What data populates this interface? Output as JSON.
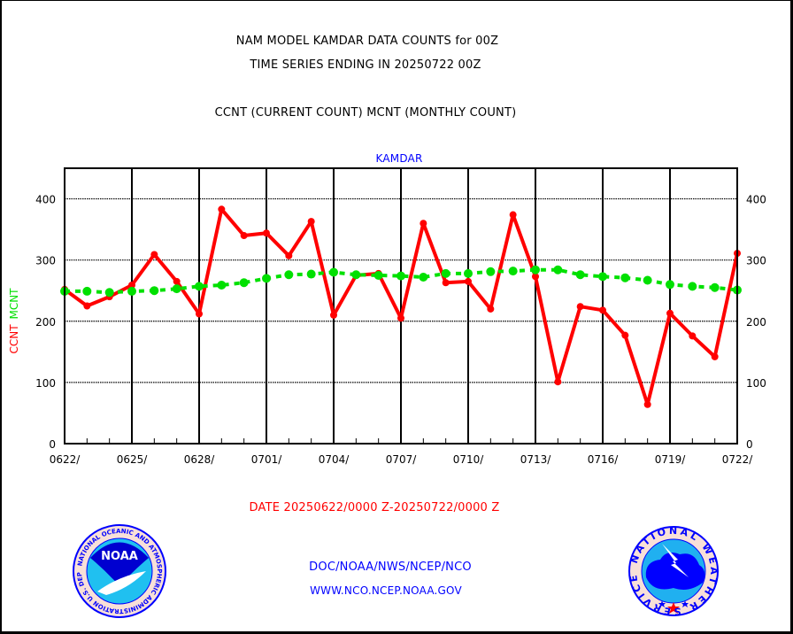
{
  "titles": {
    "line1": "NAM MODEL KAMDAR DATA COUNTS for 00Z",
    "line2": "TIME SERIES ENDING IN 20250722 00Z",
    "line3": "CCNT (CURRENT COUNT) MCNT (MONTHLY COUNT)",
    "station": "KAMDAR"
  },
  "date_range": "DATE 20250622/0000 Z-20250722/0000 Z",
  "footer": {
    "org": "DOC/NOAA/NWS/NCEP/NCO",
    "url": "WWW.NCO.NCEP.NOAA.GOV"
  },
  "logos": {
    "noaa": {
      "label": "NOAA",
      "ring_text": "NATIONAL OCEANIC AND ATMOSPHERIC ADMINISTRATION U.S. DEPARTMENT OF COMMERCE"
    },
    "nws": {
      "ring_text": "NATIONAL WEATHER SERVICE"
    }
  },
  "colors": {
    "ccnt": "#ff0000",
    "mcnt": "#00e000",
    "station": "#0000ff",
    "date": "#ff0000",
    "footer": "#0000ff"
  },
  "chart_data": {
    "type": "line",
    "title": "NAM MODEL KAMDAR DATA COUNTS for 00Z",
    "subtitle": "TIME SERIES ENDING IN 20250722 00Z",
    "xlabel": "DATE 20250622/0000 Z-20250722/0000 Z",
    "ylabel": "CCNT  MCNT",
    "ylabel_parts": [
      "CCNT",
      "MCNT"
    ],
    "ylim": [
      0,
      450
    ],
    "yticks": [
      0,
      100,
      200,
      300,
      400
    ],
    "xtick_labels": [
      "0622/",
      "0625/",
      "0628/",
      "0701/",
      "0704/",
      "0707/",
      "0710/",
      "0713/",
      "0716/",
      "0719/",
      "0722/"
    ],
    "grid": true,
    "x": [
      "0622",
      "0623",
      "0624",
      "0625",
      "0626",
      "0627",
      "0628",
      "0629",
      "0630",
      "0701",
      "0702",
      "0703",
      "0704",
      "0705",
      "0706",
      "0707",
      "0708",
      "0709",
      "0710",
      "0711",
      "0712",
      "0713",
      "0714",
      "0715",
      "0716",
      "0717",
      "0718",
      "0719",
      "0720",
      "0721",
      "0722"
    ],
    "series": [
      {
        "name": "CCNT",
        "style": "solid",
        "values": [
          252,
          225,
          240,
          259,
          309,
          265,
          212,
          383,
          340,
          344,
          307,
          363,
          210,
          275,
          278,
          205,
          360,
          263,
          265,
          220,
          374,
          273,
          101,
          224,
          218,
          177,
          64,
          213,
          176,
          142,
          311
        ]
      },
      {
        "name": "MCNT",
        "style": "dotted",
        "values": [
          249,
          249,
          247,
          249,
          250,
          253,
          257,
          259,
          263,
          270,
          276,
          277,
          280,
          276,
          275,
          274,
          272,
          278,
          278,
          281,
          282,
          284,
          284,
          276,
          273,
          271,
          267,
          260,
          257,
          255,
          251
        ]
      }
    ]
  }
}
